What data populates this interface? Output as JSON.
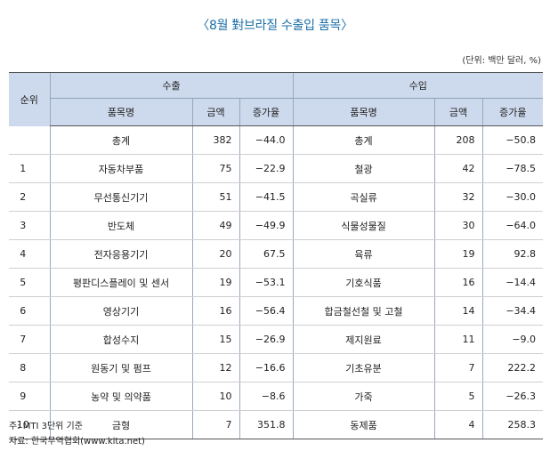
{
  "title": "〈8월 對브라질 수출입 품목〉",
  "unit": "(단위: 백만 달러, %)",
  "headers": {
    "rank": "순위",
    "export": "수출",
    "import": "수입",
    "item": "품목명",
    "amount": "금액",
    "growth": "증가율"
  },
  "rows": [
    {
      "rank": "",
      "ex_item": "총계",
      "ex_amt": "382",
      "ex_gr": "−44.0",
      "im_item": "총계",
      "im_amt": "208",
      "im_gr": "−50.8"
    },
    {
      "rank": "1",
      "ex_item": "자동차부품",
      "ex_amt": "75",
      "ex_gr": "−22.9",
      "im_item": "철광",
      "im_amt": "42",
      "im_gr": "−78.5"
    },
    {
      "rank": "2",
      "ex_item": "무선통신기기",
      "ex_amt": "51",
      "ex_gr": "−41.5",
      "im_item": "곡실류",
      "im_amt": "32",
      "im_gr": "−30.0"
    },
    {
      "rank": "3",
      "ex_item": "반도체",
      "ex_amt": "49",
      "ex_gr": "−49.9",
      "im_item": "식물성물질",
      "im_amt": "30",
      "im_gr": "−64.0"
    },
    {
      "rank": "4",
      "ex_item": "전자응용기기",
      "ex_amt": "20",
      "ex_gr": "67.5",
      "im_item": "육류",
      "im_amt": "19",
      "im_gr": "92.8"
    },
    {
      "rank": "5",
      "ex_item": "평판디스플레이 및 센서",
      "ex_amt": "19",
      "ex_gr": "−53.1",
      "im_item": "기호식품",
      "im_amt": "16",
      "im_gr": "−14.4"
    },
    {
      "rank": "6",
      "ex_item": "영상기기",
      "ex_amt": "16",
      "ex_gr": "−56.4",
      "im_item": "합금철선철 및 고철",
      "im_amt": "14",
      "im_gr": "−34.4"
    },
    {
      "rank": "7",
      "ex_item": "합성수지",
      "ex_amt": "15",
      "ex_gr": "−26.9",
      "im_item": "제지원료",
      "im_amt": "11",
      "im_gr": "−9.0"
    },
    {
      "rank": "8",
      "ex_item": "원동기 및 펌프",
      "ex_amt": "12",
      "ex_gr": "−16.6",
      "im_item": "기초유분",
      "im_amt": "7",
      "im_gr": "222.2"
    },
    {
      "rank": "9",
      "ex_item": "농약 및 의약품",
      "ex_amt": "10",
      "ex_gr": "−8.6",
      "im_item": "가죽",
      "im_amt": "5",
      "im_gr": "−26.3"
    },
    {
      "rank": "10",
      "ex_item": "금형",
      "ex_amt": "7",
      "ex_gr": "351.8",
      "im_item": "동제품",
      "im_amt": "4",
      "im_gr": "258.3"
    }
  ],
  "notes": {
    "note": "주: MTI 3단위 기준",
    "source": "자료: 한국무역협회(www.kita.net)"
  }
}
